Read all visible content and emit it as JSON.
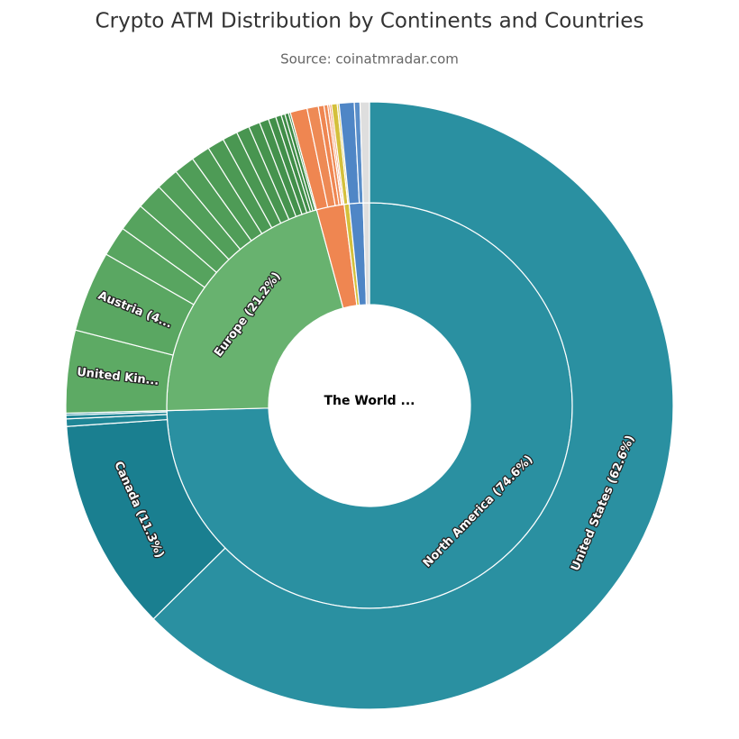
{
  "chart_data": {
    "type": "sunburst",
    "title": "Crypto ATM Distribution by Continents and Countries",
    "subtitle": "Source: coinatmradar.com",
    "center_label": "The World ...",
    "rings": [
      {
        "categories": [
          "North America (74.6%)",
          "Europe (21.2%)",
          null,
          null,
          null,
          null
        ],
        "values": [
          74.6,
          21.2,
          2.2,
          0.4,
          1.1,
          0.5
        ],
        "colors": [
          "#2a90a1",
          "#68b26f",
          "#ef8651",
          "#d4c03c",
          "#4f86c6",
          "#dedede"
        ]
      },
      {
        "categories": [
          "United States (62.6%)",
          "Canada (11.3%)",
          null,
          null,
          null,
          "United Kin...",
          "Austria (4...",
          null,
          null,
          null,
          null,
          null,
          null,
          null,
          null,
          null,
          null,
          null,
          null,
          null,
          null,
          null,
          null,
          null,
          null,
          null,
          null,
          null,
          null,
          null,
          null,
          null,
          null,
          null
        ],
        "values": [
          62.6,
          11.3,
          0.4,
          0.2,
          0.1,
          4.4,
          4.3,
          1.6,
          1.5,
          1.4,
          1.2,
          1.1,
          1.0,
          0.9,
          0.8,
          0.7,
          0.6,
          0.5,
          0.4,
          0.3,
          0.2,
          0.2,
          0.1,
          0.9,
          0.6,
          0.3,
          0.2,
          0.1,
          0.1,
          0.3,
          0.1,
          0.8,
          0.3,
          0.5
        ],
        "colors": [
          "#2a90a1",
          "#1a7f90",
          "#1f8696",
          "#1f8696",
          "#1f8696",
          "#5daa64",
          "#5aa762",
          "#58a560",
          "#56a35e",
          "#54a15c",
          "#529f5a",
          "#509d58",
          "#4e9b56",
          "#4c9954",
          "#4a9752",
          "#489550",
          "#46934e",
          "#44914c",
          "#428f4a",
          "#408d48",
          "#3e8b46",
          "#3c8944",
          "#3a8742",
          "#ef8651",
          "#ee8a55",
          "#ef8651",
          "#ee8a55",
          "#ef8651",
          "#ee8a55",
          "#d4c03c",
          "#d8c44a",
          "#4f86c6",
          "#5a8ec9",
          "#dedede"
        ]
      }
    ]
  }
}
